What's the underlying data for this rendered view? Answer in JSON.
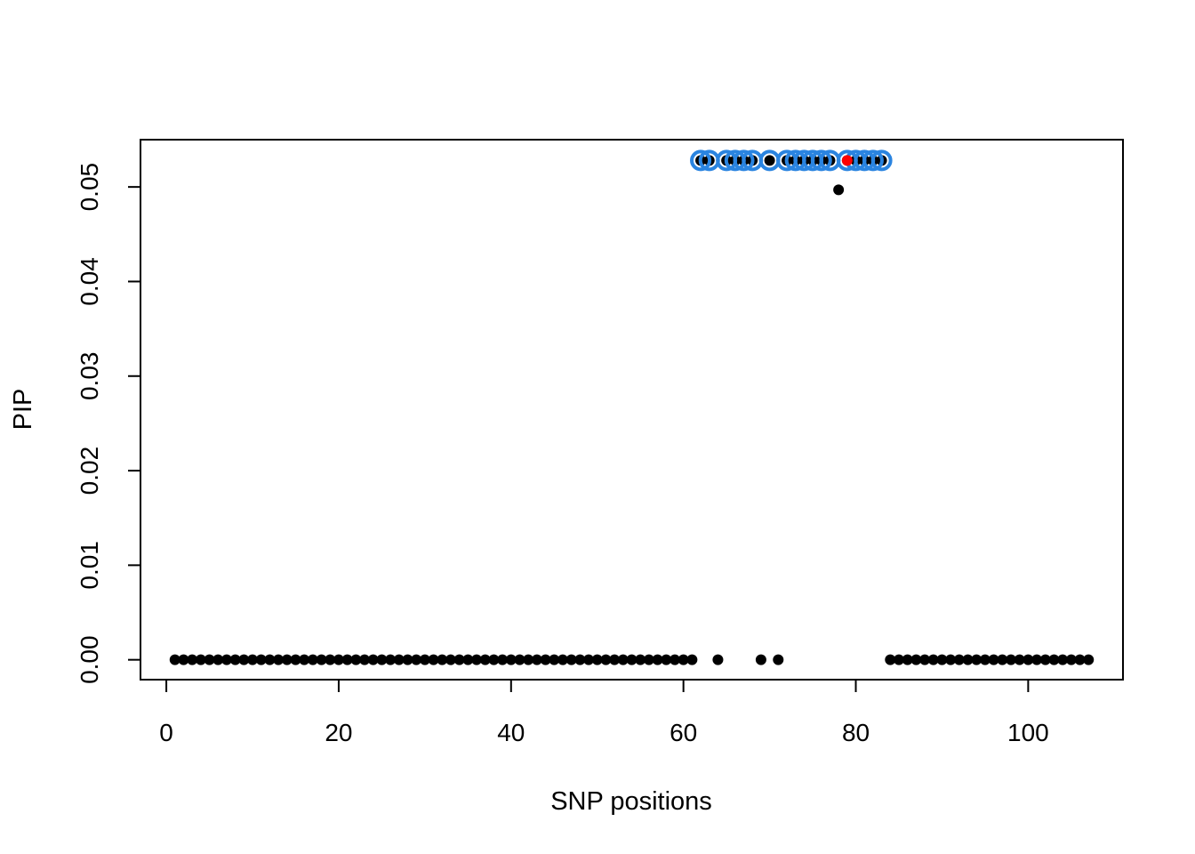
{
  "chart_data": {
    "type": "scatter",
    "title": "",
    "xlabel": "SNP positions",
    "ylabel": "PIP",
    "xlim": [
      -3,
      111
    ],
    "ylim": [
      -0.0021,
      0.055
    ],
    "x_ticks": [
      0,
      20,
      40,
      60,
      80,
      100
    ],
    "x_tick_labels": [
      "0",
      "20",
      "40",
      "60",
      "80",
      "100"
    ],
    "y_ticks": [
      0.0,
      0.01,
      0.02,
      0.03,
      0.04,
      0.05
    ],
    "y_tick_labels": [
      "0.00",
      "0.01",
      "0.02",
      "0.03",
      "0.04",
      "0.05"
    ],
    "grid": false,
    "legend": "none",
    "colors": {
      "points": "#000000",
      "credible_set": "#2a84e0",
      "lead_snp": "#ff0000"
    },
    "series": [
      {
        "role": "all-snps",
        "marker": "filled-circle",
        "color": "#000000",
        "x": [
          1,
          2,
          3,
          4,
          5,
          6,
          7,
          8,
          9,
          10,
          11,
          12,
          13,
          14,
          15,
          16,
          17,
          18,
          19,
          20,
          21,
          22,
          23,
          24,
          25,
          26,
          27,
          28,
          29,
          30,
          31,
          32,
          33,
          34,
          35,
          36,
          37,
          38,
          39,
          40,
          41,
          42,
          43,
          44,
          45,
          46,
          47,
          48,
          49,
          50,
          51,
          52,
          53,
          54,
          55,
          56,
          57,
          58,
          59,
          60,
          61,
          62,
          63,
          64,
          65,
          66,
          67,
          68,
          69,
          70,
          71,
          72,
          73,
          74,
          75,
          76,
          77,
          78,
          79,
          80,
          81,
          82,
          83,
          84,
          85,
          86,
          87,
          88,
          89,
          90,
          91,
          92,
          93,
          94,
          95,
          96,
          97,
          98,
          99,
          100,
          101,
          102,
          103,
          104,
          105,
          106,
          107
        ],
        "y": [
          0,
          0,
          0,
          0,
          0,
          0,
          0,
          0,
          0,
          0,
          0,
          0,
          0,
          0,
          0,
          0,
          0,
          0,
          0,
          0,
          0,
          0,
          0,
          0,
          0,
          0,
          0,
          0,
          0,
          0,
          0,
          0,
          0,
          0,
          0,
          0,
          0,
          0,
          0,
          0,
          0,
          0,
          0,
          0,
          0,
          0,
          0,
          0,
          0,
          0,
          0,
          0,
          0,
          0,
          0,
          0,
          0,
          0,
          0,
          0,
          0,
          0.0528,
          0.0528,
          0,
          0.0528,
          0.0528,
          0.0528,
          0.0528,
          0,
          0.0528,
          0,
          0.0528,
          0.0528,
          0.0528,
          0.0528,
          0.0528,
          0.0528,
          0.0497,
          0.0528,
          0.0528,
          0.0528,
          0.0528,
          0.0528,
          0,
          0,
          0,
          0,
          0,
          0,
          0,
          0,
          0,
          0,
          0,
          0,
          0,
          0,
          0,
          0,
          0,
          0,
          0,
          0,
          0,
          0,
          0,
          0
        ]
      },
      {
        "role": "credible-set",
        "marker": "open-circle",
        "color": "#2a84e0",
        "x": [
          62,
          63,
          65,
          66,
          67,
          68,
          70,
          72,
          73,
          74,
          75,
          76,
          77,
          79,
          80,
          81,
          82,
          83
        ],
        "y": [
          0.0528,
          0.0528,
          0.0528,
          0.0528,
          0.0528,
          0.0528,
          0.0528,
          0.0528,
          0.0528,
          0.0528,
          0.0528,
          0.0528,
          0.0528,
          0.0528,
          0.0528,
          0.0528,
          0.0528,
          0.0528
        ]
      },
      {
        "role": "lead-snp",
        "marker": "filled-circle",
        "color": "#ff0000",
        "x": [
          79
        ],
        "y": [
          0.0528
        ]
      }
    ]
  }
}
